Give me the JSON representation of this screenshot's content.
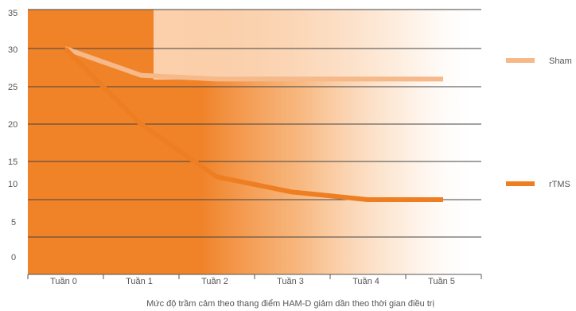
{
  "chart_data": {
    "type": "line",
    "categories": [
      "Tuần 0",
      "Tuần 1",
      "Tuần 2",
      "Tuần 3",
      "Tuần 4",
      "Tuần 5"
    ],
    "y_tick_labels": [
      "35",
      "30",
      "25",
      "20",
      "15",
      "10",
      "5",
      "0"
    ],
    "series": [
      {
        "name": "Sham",
        "color": "#f5b98a",
        "values": [
          30,
          26.5,
          26,
          26,
          26,
          26
        ]
      },
      {
        "name": "rTMS",
        "color": "#ee7e22",
        "values": [
          30,
          20,
          13,
          11,
          10,
          10
        ]
      }
    ],
    "caption": "Mức độ trầm cảm theo thang điểm HAM-D giảm dần theo thời gian điều trị",
    "grid": true,
    "legend_position": "right",
    "background_color": "#f08228"
  }
}
